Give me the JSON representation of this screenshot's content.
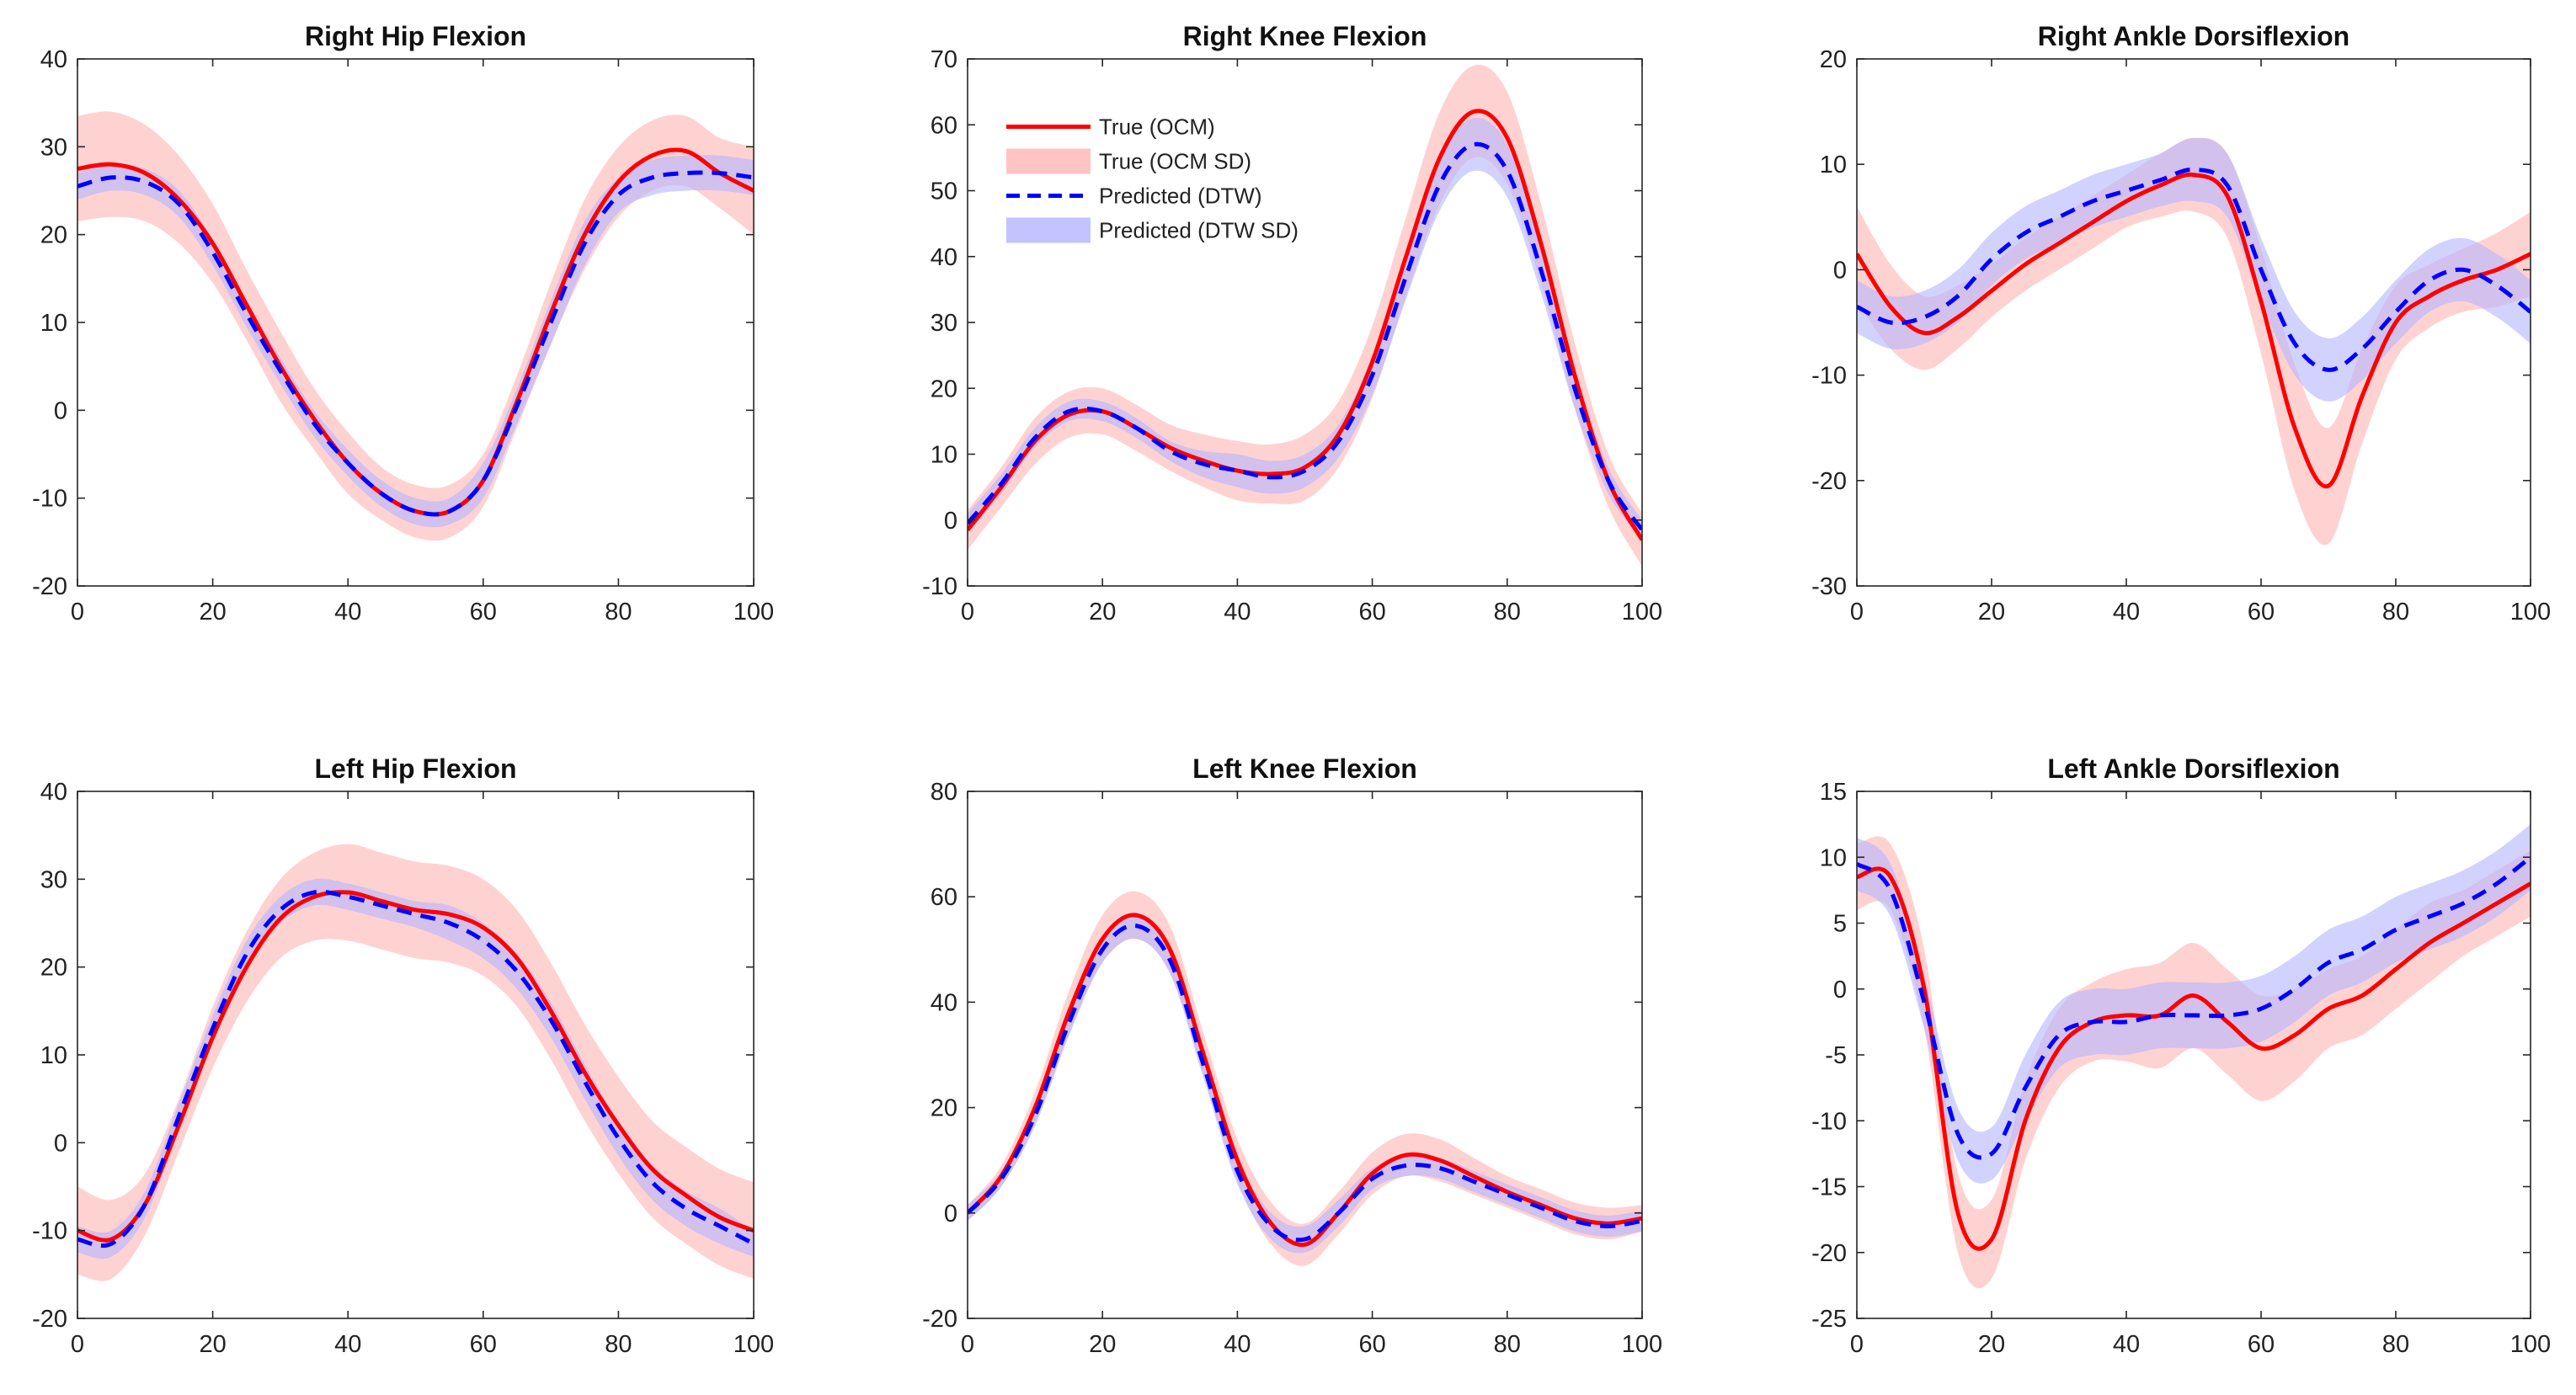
{
  "colors": {
    "true_line": "#ff0000",
    "true_band": "#ffb4b4",
    "pred_line": "#0000ff",
    "pred_band": "#b4b4ff",
    "axis": "#262626"
  },
  "legend": {
    "entries": [
      "True (OCM)",
      "True (OCM SD)",
      "Predicted (DTW)",
      "Predicted (DTW SD)"
    ]
  },
  "chart_data": [
    {
      "type": "line",
      "title": "Right Hip Flexion",
      "xlabel": "",
      "ylabel": "",
      "xlim": [
        0,
        100
      ],
      "ylim": [
        -20,
        40
      ],
      "xticks": [
        0,
        20,
        40,
        60,
        80,
        100
      ],
      "yticks": [
        -20,
        -10,
        0,
        10,
        20,
        30,
        40
      ],
      "x": [
        0,
        5,
        10,
        15,
        20,
        25,
        30,
        35,
        40,
        45,
        50,
        55,
        60,
        65,
        70,
        75,
        80,
        85,
        90,
        95,
        100
      ],
      "series": [
        {
          "name": "True (OCM)",
          "values": [
            27.5,
            28,
            27,
            24,
            19,
            12,
            5,
            -1,
            -6,
            -9.5,
            -11.5,
            -11.5,
            -8,
            1,
            11,
            20,
            26,
            29,
            29.5,
            27,
            25
          ],
          "sd": [
            6,
            6,
            5.5,
            5,
            4.5,
            4,
            4,
            3.5,
            3.5,
            3,
            3,
            3,
            3,
            3,
            3.5,
            4,
            4,
            4,
            4,
            4,
            5
          ]
        },
        {
          "name": "Predicted (DTW)",
          "values": [
            25.5,
            26.5,
            26,
            23.5,
            18,
            11,
            4.5,
            -1.5,
            -6,
            -9.5,
            -11.5,
            -11.5,
            -8,
            0.5,
            10,
            19,
            24.5,
            26.5,
            27,
            27,
            26.5
          ],
          "sd": [
            1.5,
            1.5,
            1.5,
            1.5,
            1.5,
            1.5,
            1.5,
            1.5,
            1.5,
            1.5,
            1.5,
            1.5,
            2,
            2,
            2.5,
            2.5,
            2,
            2,
            2,
            2,
            2
          ]
        }
      ]
    },
    {
      "type": "line",
      "title": "Right Knee Flexion",
      "xlabel": "",
      "ylabel": "",
      "xlim": [
        0,
        100
      ],
      "ylim": [
        -10,
        70
      ],
      "xticks": [
        0,
        20,
        40,
        60,
        80,
        100
      ],
      "yticks": [
        -10,
        0,
        10,
        20,
        30,
        40,
        50,
        60,
        70
      ],
      "x": [
        0,
        5,
        10,
        15,
        20,
        25,
        30,
        35,
        40,
        45,
        50,
        55,
        60,
        65,
        70,
        75,
        80,
        85,
        90,
        95,
        100
      ],
      "series": [
        {
          "name": "True (OCM)",
          "values": [
            -1.5,
            5,
            12,
            16,
            16.5,
            14,
            11,
            9,
            7.5,
            7,
            8,
            13,
            24,
            40,
            55,
            62,
            58,
            42,
            22,
            6,
            -3
          ],
          "sd": [
            3,
            3,
            3.5,
            3.5,
            3.5,
            3.5,
            3.5,
            4,
            4.5,
            4.5,
            5,
            5,
            5.5,
            6,
            7,
            7,
            7,
            6,
            5,
            4,
            4
          ]
        },
        {
          "name": "Predicted (DTW)",
          "values": [
            -0.5,
            5.5,
            12.5,
            16.5,
            16.5,
            14,
            10.5,
            8.5,
            7.5,
            6.5,
            7.5,
            12,
            22,
            37,
            51,
            57,
            53,
            38,
            20,
            6,
            -1.5
          ],
          "sd": [
            1.5,
            1.5,
            1.5,
            1.5,
            1.5,
            1.5,
            1.5,
            2,
            2.5,
            2.5,
            2.5,
            2.5,
            3,
            3.5,
            4,
            4,
            4,
            3.5,
            3,
            2,
            1.5
          ]
        }
      ]
    },
    {
      "type": "line",
      "title": "Right Ankle Dorsiflexion",
      "xlabel": "",
      "ylabel": "",
      "xlim": [
        0,
        100
      ],
      "ylim": [
        -30,
        20
      ],
      "xticks": [
        0,
        20,
        40,
        60,
        80,
        100
      ],
      "yticks": [
        -30,
        -20,
        -10,
        0,
        10,
        20
      ],
      "x": [
        0,
        5,
        10,
        15,
        20,
        25,
        30,
        35,
        40,
        45,
        50,
        55,
        60,
        65,
        70,
        75,
        80,
        85,
        90,
        95,
        100
      ],
      "series": [
        {
          "name": "True (OCM)",
          "values": [
            1.5,
            -3.5,
            -6,
            -4.5,
            -2,
            0.5,
            2.5,
            4.5,
            6.5,
            8,
            9,
            7,
            -3,
            -15,
            -20.5,
            -12,
            -5,
            -2.5,
            -1,
            0,
            1.5
          ],
          "sd": [
            4.5,
            4,
            3.5,
            3,
            2.5,
            2.5,
            2.5,
            2.5,
            2.5,
            3,
            3.5,
            4,
            5,
            6,
            5.5,
            4.5,
            3.5,
            3,
            3,
            3.5,
            4
          ]
        },
        {
          "name": "Predicted (DTW)",
          "values": [
            -3.5,
            -5,
            -4.5,
            -2.5,
            1,
            3.5,
            5,
            6.5,
            7.5,
            8.5,
            9.5,
            8,
            0,
            -7,
            -9.5,
            -7.5,
            -4,
            -1,
            0,
            -1.5,
            -4
          ],
          "sd": [
            2.5,
            2.5,
            2.5,
            2.5,
            2.5,
            2.5,
            2.5,
            2.5,
            2.5,
            2.5,
            3,
            3,
            3,
            3,
            3,
            3,
            3,
            3,
            3,
            3,
            3
          ]
        }
      ]
    },
    {
      "type": "line",
      "title": "Left Hip Flexion",
      "xlabel": "",
      "ylabel": "",
      "xlim": [
        0,
        100
      ],
      "ylim": [
        -20,
        40
      ],
      "xticks": [
        0,
        20,
        40,
        60,
        80,
        100
      ],
      "yticks": [
        -20,
        -10,
        0,
        10,
        20,
        30,
        40
      ],
      "x": [
        0,
        5,
        10,
        15,
        20,
        25,
        30,
        35,
        40,
        45,
        50,
        55,
        60,
        65,
        70,
        75,
        80,
        85,
        90,
        95,
        100
      ],
      "series": [
        {
          "name": "True (OCM)",
          "values": [
            -10,
            -11,
            -7,
            2,
            12,
            20,
            25.5,
            28,
            28.5,
            27.5,
            26.5,
            26,
            24.5,
            21,
            15,
            8,
            2,
            -3,
            -6,
            -8.5,
            -10
          ],
          "sd": [
            5,
            4.5,
            3.5,
            3,
            3.5,
            4,
            4.5,
            5,
            5.5,
            5.5,
            5.5,
            5.5,
            5.5,
            5.5,
            5.5,
            5.5,
            5.5,
            5.5,
            5.5,
            5.5,
            5.5
          ]
        },
        {
          "name": "Predicted (DTW)",
          "values": [
            -11,
            -11.5,
            -7,
            3,
            13,
            21.5,
            26.5,
            28.5,
            28,
            27,
            26,
            25,
            23,
            19.5,
            14,
            7,
            0.5,
            -4.5,
            -7.5,
            -9.5,
            -11.5
          ],
          "sd": [
            1.5,
            1.5,
            1.5,
            1.5,
            1.5,
            1.5,
            1.5,
            1.5,
            1.5,
            1.5,
            1.5,
            2,
            2,
            2,
            2,
            2,
            2,
            2,
            2,
            2,
            1.5
          ]
        }
      ]
    },
    {
      "type": "line",
      "title": "Left Knee Flexion",
      "xlabel": "",
      "ylabel": "",
      "xlim": [
        0,
        100
      ],
      "ylim": [
        -20,
        80
      ],
      "xticks": [
        0,
        20,
        40,
        60,
        80,
        100
      ],
      "yticks": [
        -20,
        0,
        20,
        40,
        60,
        80
      ],
      "x": [
        0,
        5,
        10,
        15,
        20,
        25,
        30,
        35,
        40,
        45,
        50,
        55,
        60,
        65,
        70,
        75,
        80,
        85,
        90,
        95,
        100
      ],
      "series": [
        {
          "name": "True (OCM)",
          "values": [
            0,
            7,
            20,
            38,
            52,
            56.5,
            50,
            30,
            10,
            -2,
            -6,
            0,
            7.5,
            11,
            10,
            7,
            4,
            1.5,
            -1,
            -2,
            -1
          ],
          "sd": [
            1.5,
            2,
            3,
            4,
            4.5,
            4.5,
            4.5,
            4,
            4,
            4,
            4,
            4,
            4,
            4,
            4,
            3.5,
            3,
            3,
            3,
            3,
            2.5
          ]
        },
        {
          "name": "Predicted (DTW)",
          "values": [
            0,
            6.5,
            18.5,
            36,
            50,
            54.5,
            48,
            28,
            8,
            -2.5,
            -5,
            0,
            6.5,
            9,
            8.5,
            6,
            3.5,
            1,
            -1.5,
            -2.5,
            -1.5
          ],
          "sd": [
            1.5,
            1.5,
            2,
            2.5,
            2.5,
            2.5,
            2.5,
            2.5,
            2.5,
            2.5,
            2.5,
            2.5,
            2,
            2,
            2,
            2,
            2,
            2,
            2,
            2,
            2
          ]
        }
      ]
    },
    {
      "type": "line",
      "title": "Left Ankle Dorsiflexion",
      "xlabel": "",
      "ylabel": "",
      "xlim": [
        0,
        100
      ],
      "ylim": [
        -25,
        15
      ],
      "xticks": [
        0,
        20,
        40,
        60,
        80,
        100
      ],
      "yticks": [
        -25,
        -20,
        -15,
        -10,
        -5,
        0,
        5,
        10,
        15
      ],
      "x": [
        0,
        5,
        10,
        15,
        20,
        25,
        30,
        35,
        40,
        45,
        50,
        55,
        60,
        65,
        70,
        75,
        80,
        85,
        90,
        95,
        100
      ],
      "series": [
        {
          "name": "True (OCM)",
          "values": [
            8.5,
            8.5,
            0,
            -17,
            -19,
            -10,
            -4.5,
            -2.5,
            -2,
            -2,
            -0.5,
            -2.5,
            -4.5,
            -3.5,
            -1.5,
            -0.5,
            1.5,
            3.5,
            5,
            6.5,
            8
          ],
          "sd": [
            2.5,
            2.5,
            3,
            3,
            3,
            3,
            3,
            3,
            3.5,
            4,
            4,
            4,
            4,
            3.5,
            3,
            3,
            3,
            3,
            2.5,
            2.5,
            2.5
          ]
        },
        {
          "name": "Predicted (DTW)",
          "values": [
            9.5,
            7.5,
            -1,
            -11,
            -12.5,
            -7.5,
            -3.5,
            -2.5,
            -2.5,
            -2,
            -2,
            -2,
            -1.5,
            0,
            2,
            3,
            4.5,
            5.5,
            6.5,
            8,
            10
          ],
          "sd": [
            2,
            2,
            2,
            2,
            2,
            2.5,
            2.5,
            2.5,
            2.5,
            2.5,
            2.5,
            2.5,
            2.5,
            2.5,
            2.5,
            2.5,
            2.5,
            2.5,
            2.5,
            2.5,
            2.5
          ]
        }
      ]
    }
  ]
}
